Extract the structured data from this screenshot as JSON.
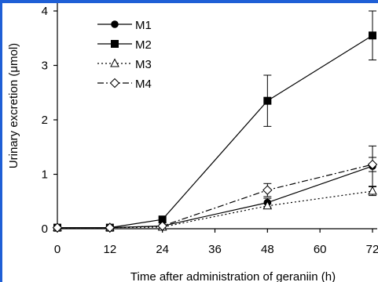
{
  "chart_data": {
    "type": "line",
    "xlabel": "Time after administration of geraniin (h)",
    "ylabel": "Urinary excretion (μmol)",
    "x": [
      0,
      12,
      24,
      48,
      72
    ],
    "xticks": [
      "0",
      "12",
      "24",
      "36",
      "48",
      "60",
      "72"
    ],
    "xtick_values": [
      0,
      12,
      24,
      36,
      48,
      60,
      72
    ],
    "yticks": [
      "0",
      "1",
      "2",
      "3",
      "4"
    ],
    "ytick_values": [
      0,
      1,
      2,
      3,
      4
    ],
    "xlim": [
      0,
      72
    ],
    "ylim": [
      0,
      4
    ],
    "grid": false,
    "legend_position": "top-left",
    "series": [
      {
        "name": "M1",
        "marker": "circle",
        "line": "solid",
        "values": [
          0.02,
          0.02,
          0.05,
          0.48,
          1.15
        ],
        "errors": [
          0,
          0,
          0,
          0.08,
          0.37
        ]
      },
      {
        "name": "M2",
        "marker": "square",
        "line": "solid",
        "values": [
          0.02,
          0.02,
          0.17,
          2.35,
          3.55
        ],
        "errors": [
          0,
          0,
          0,
          0.47,
          0.45
        ]
      },
      {
        "name": "M3",
        "marker": "triangle",
        "line": "dotted",
        "values": [
          0.02,
          0.02,
          0.03,
          0.42,
          0.69
        ],
        "errors": [
          0,
          0,
          0,
          0.05,
          0.08
        ]
      },
      {
        "name": "M4",
        "marker": "diamond",
        "line": "dashdot",
        "values": [
          0.02,
          0.02,
          0.05,
          0.71,
          1.18
        ],
        "errors": [
          0,
          0,
          0,
          0.12,
          0.13
        ]
      }
    ],
    "colors": {
      "axis": "#000000",
      "frame": "#1f5fd6"
    }
  }
}
